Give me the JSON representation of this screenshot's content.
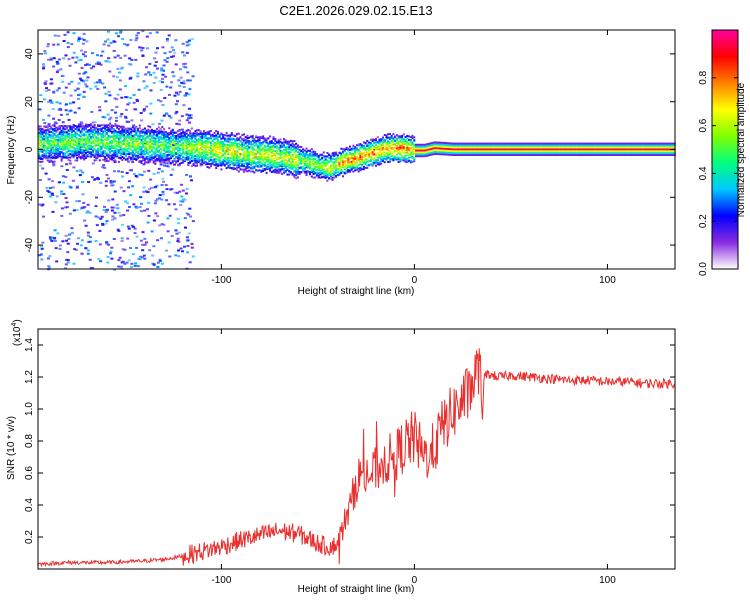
{
  "page": {
    "title": "C2E1.2026.029.02.15.E13"
  },
  "chart_data": [
    {
      "type": "heatmap",
      "title": "C2E1.2026.029.02.15.E13",
      "xlabel": "Height of straight line (km)",
      "ylabel": "Frequency (Hz)",
      "xlim": [
        -195,
        135
      ],
      "ylim": [
        -50,
        50
      ],
      "x_ticks": [
        -100,
        0,
        100
      ],
      "x_tick_labels": [
        "-100",
        "0",
        "100"
      ],
      "y_ticks": [
        -40,
        -20,
        0,
        20,
        40
      ],
      "y_tick_labels": [
        "-40",
        "-20",
        "0",
        "20",
        "40"
      ],
      "colorbar": {
        "label": "Normalized spectral amplitude",
        "range": [
          0,
          1
        ],
        "ticks": [
          0,
          0.2,
          0.4,
          0.6,
          0.8
        ],
        "tick_labels": [
          "0.0",
          "0.2",
          "0.4",
          "0.6",
          "0.8"
        ],
        "colors": [
          "#ffffff",
          "#8a2be2",
          "#0000ff",
          "#00c8ff",
          "#00ff80",
          "#80ff00",
          "#ffff00",
          "#ff8000",
          "#ff0000",
          "#ff00a0"
        ]
      },
      "ridge": {
        "x": [
          -190,
          -170,
          -150,
          -130,
          -110,
          -90,
          -75,
          -60,
          -50,
          -44,
          -38,
          -30,
          -22,
          -15,
          -5,
          0,
          5,
          10,
          20,
          40,
          80,
          135
        ],
        "frequency": [
          3,
          4,
          3,
          2,
          1,
          -1,
          -2,
          -4,
          -6,
          -7,
          -5,
          -3,
          -1,
          1,
          1,
          0,
          0,
          1,
          0.5,
          0.5,
          0.5,
          0.5
        ]
      }
    },
    {
      "type": "line",
      "xlabel": "Height of straight line (km)",
      "ylabel": "SNR (10 * v/v)",
      "scale_label": "(x10",
      "scale_exponent": "4",
      "xlim": [
        -195,
        135
      ],
      "ylim": [
        0,
        1.5
      ],
      "x_ticks": [
        -100,
        0,
        100
      ],
      "x_tick_labels": [
        "-100",
        "0",
        "100"
      ],
      "y_ticks": [
        0.2,
        0.4,
        0.6,
        0.8,
        1.0,
        1.2,
        1.4
      ],
      "y_tick_labels": [
        "0.2",
        "0.4",
        "0.6",
        "0.8",
        "1.0",
        "1.2",
        "1.4"
      ],
      "series": [
        {
          "name": "SNR",
          "color": "#e8302e",
          "x": [
            -195,
            -180,
            -160,
            -140,
            -130,
            -120,
            -110,
            -100,
            -90,
            -80,
            -70,
            -60,
            -50,
            -45,
            -40,
            -36,
            -33,
            -30,
            -27,
            -24,
            -20,
            -15,
            -10,
            -5,
            0,
            5,
            10,
            15,
            20,
            25,
            28,
            30,
            32,
            34,
            35,
            36,
            38,
            40,
            45,
            50,
            60,
            70,
            80,
            90,
            100,
            110,
            120,
            135
          ],
          "y": [
            0.03,
            0.04,
            0.04,
            0.05,
            0.06,
            0.08,
            0.11,
            0.14,
            0.18,
            0.21,
            0.24,
            0.22,
            0.16,
            0.14,
            0.15,
            0.3,
            0.4,
            0.55,
            0.6,
            0.58,
            0.62,
            0.68,
            0.7,
            0.78,
            0.82,
            0.7,
            0.75,
            0.9,
            0.98,
            1.05,
            1.1,
            1.15,
            1.22,
            1.3,
            0.8,
            1.2,
            1.22,
            1.21,
            1.2,
            1.21,
            1.2,
            1.19,
            1.18,
            1.18,
            1.17,
            1.17,
            1.16,
            1.16
          ]
        }
      ]
    }
  ]
}
